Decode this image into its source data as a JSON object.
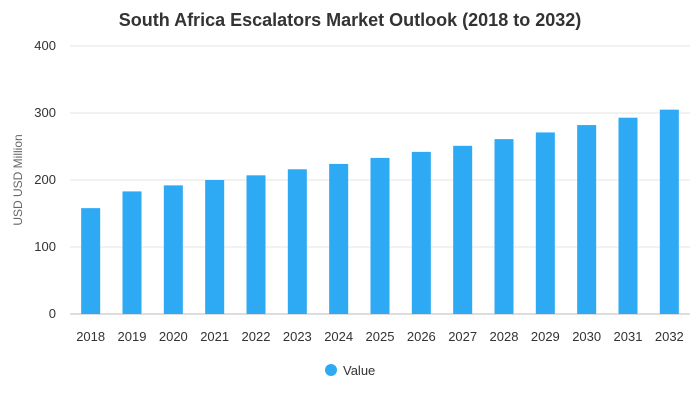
{
  "chart_data": {
    "type": "bar",
    "title": "South Africa Escalators Market Outlook (2018 to 2032)",
    "xlabel": "",
    "ylabel": "USD USD Million",
    "categories": [
      "2018",
      "2019",
      "2020",
      "2021",
      "2022",
      "2023",
      "2024",
      "2025",
      "2026",
      "2027",
      "2028",
      "2029",
      "2030",
      "2031",
      "2032"
    ],
    "series": [
      {
        "name": "Value",
        "color": "#2eaaf5",
        "values": [
          158,
          183,
          192,
          200,
          207,
          216,
          224,
          233,
          242,
          251,
          261,
          271,
          282,
          293,
          305
        ]
      }
    ],
    "ylim": [
      0,
      400
    ],
    "yticks": [
      "0",
      "100",
      "200",
      "300",
      "400"
    ],
    "grid": true,
    "legend_position": "bottom"
  }
}
